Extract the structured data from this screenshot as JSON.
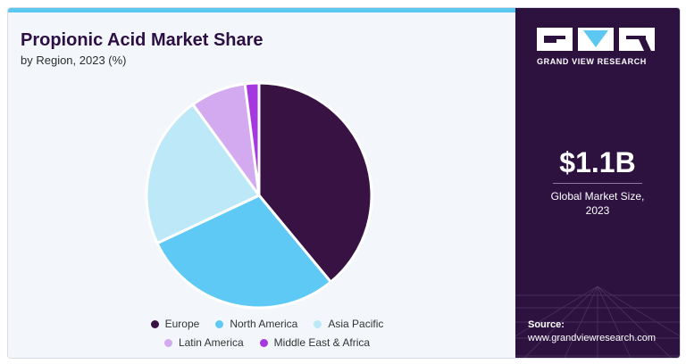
{
  "header": {
    "title": "Propionic Acid Market Share",
    "subtitle": "by Region, 2023 (%)"
  },
  "brand": {
    "name": "GRAND VIEW RESEARCH",
    "bg_color": "#2d1240",
    "accent_color": "#5cc8f2"
  },
  "kpi": {
    "value": "$1.1B",
    "label_line1": "Global Market Size,",
    "label_line2": "2023"
  },
  "source": {
    "label": "Source:",
    "url": "www.grandviewresearch.com"
  },
  "chart_data": {
    "type": "pie",
    "title": "Propionic Acid Market Share",
    "subtitle": "by Region, 2023 (%)",
    "start_angle_deg": 0,
    "direction": "clockwise",
    "legend_position": "bottom",
    "categories": [
      "Europe",
      "North America",
      "Asia Pacific",
      "Latin America",
      "Middle East & Africa"
    ],
    "values": [
      39,
      29,
      22,
      8,
      2
    ],
    "colors": [
      "#371243",
      "#5ec9f4",
      "#bde8f8",
      "#d3aaf0",
      "#a638e0"
    ]
  }
}
